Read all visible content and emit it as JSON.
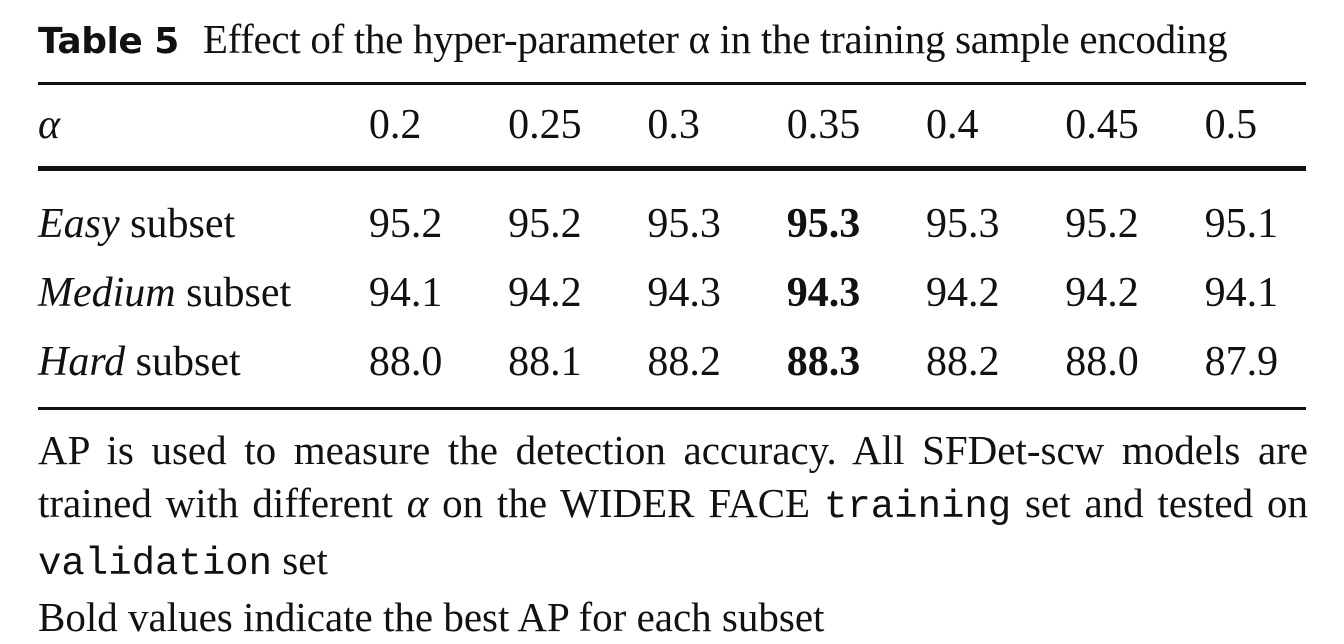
{
  "caption": {
    "label": "Table 5",
    "text": "Effect of the hyper-parameter α in the training sample encoding"
  },
  "table": {
    "header_label": "α",
    "alphas": [
      "0.2",
      "0.25",
      "0.3",
      "0.35",
      "0.4",
      "0.45",
      "0.5"
    ],
    "best_column_index": 3,
    "rows": [
      {
        "label_italic": "Easy",
        "label_rest": " subset",
        "values": [
          "95.2",
          "95.2",
          "95.3",
          "95.3",
          "95.3",
          "95.2",
          "95.1"
        ]
      },
      {
        "label_italic": "Medium",
        "label_rest": " subset",
        "values": [
          "94.1",
          "94.2",
          "94.3",
          "94.3",
          "94.2",
          "94.2",
          "94.1"
        ]
      },
      {
        "label_italic": "Hard",
        "label_rest": " subset",
        "values": [
          "88.0",
          "88.1",
          "88.2",
          "88.3",
          "88.2",
          "88.0",
          "87.9"
        ]
      }
    ]
  },
  "notes": {
    "line1_a": "AP is used to measure the detection accuracy. All SFDet-scw models are trained with different ",
    "line1_alpha": "α",
    "line1_b": " on the WIDER FACE ",
    "line1_mono1": "training",
    "line1_c": " set and tested on ",
    "line1_mono2": "validation",
    "line1_d": " set",
    "line2": "Bold values indicate the best AP for each subset"
  }
}
